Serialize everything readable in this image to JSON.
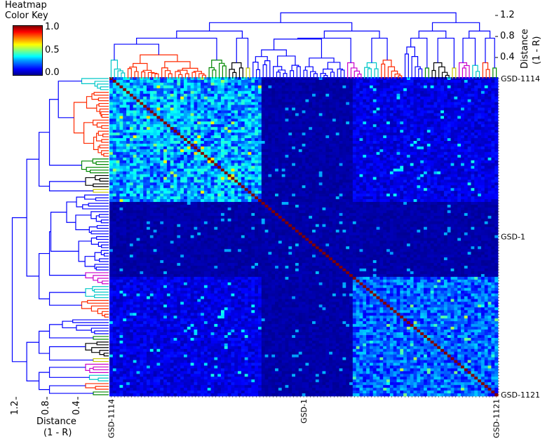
{
  "chart_data": {
    "type": "heatmap",
    "title": "Heatmap Color Key",
    "colorkey": {
      "title_line1": "Heatmap",
      "title_line2": "Color Key",
      "ticks": [
        "1.0",
        "0.5",
        "0.0"
      ],
      "range": [
        0,
        1
      ],
      "colormap": "jet"
    },
    "n_samples": 115,
    "label_first": "GSD-1114",
    "label_last": "GSD-1121",
    "label_prefix": "GSD-1",
    "top_dendrogram": {
      "ylabel_line1": "Distance",
      "ylabel_line2": "(1 - R)",
      "ticks": [
        "1.2",
        "0.8",
        "0.4"
      ],
      "tick_values": [
        1.2,
        0.8,
        0.4
      ]
    },
    "left_dendrogram": {
      "xlabel_line1": "Distance",
      "xlabel_line2": "(1 - R)",
      "ticks": [
        "1.2",
        "0.8",
        "0.4"
      ],
      "tick_values": [
        1.2,
        0.8,
        0.4
      ]
    },
    "clusters": [
      {
        "color": "#00c8c8",
        "size": 5,
        "level": 0.35
      },
      {
        "color": "#ff2a00",
        "size": 24,
        "level": 0.45
      },
      {
        "color": "#008800",
        "size": 6,
        "level": 0.35
      },
      {
        "color": "#000000",
        "size": 5,
        "level": 0.3
      },
      {
        "color": "#c8c800",
        "size": 2,
        "level": 0.2
      },
      {
        "color": "#0000ff",
        "size": 28,
        "level": 0.75
      },
      {
        "color": "#cc00cc",
        "size": 5,
        "level": 0.3
      },
      {
        "color": "#00c8c8",
        "size": 5,
        "level": 0.3
      },
      {
        "color": "#ff2a00",
        "size": 7,
        "level": 0.35
      },
      {
        "color": "#0000ff",
        "size": 6,
        "level": 0.6
      },
      {
        "color": "#008800",
        "size": 2,
        "level": 0.2
      },
      {
        "color": "#000000",
        "size": 6,
        "level": 0.3
      },
      {
        "color": "#c8c800",
        "size": 2,
        "level": 0.2
      },
      {
        "color": "#cc00cc",
        "size": 4,
        "level": 0.3
      },
      {
        "color": "#00c8c8",
        "size": 3,
        "level": 0.25
      },
      {
        "color": "#ff2a00",
        "size": 3,
        "level": 0.3
      },
      {
        "color": "#008800",
        "size": 2,
        "level": 0.2
      }
    ],
    "blocks": [
      {
        "start": 0,
        "end": 45,
        "mean": 0.28
      },
      {
        "start": 45,
        "end": 72,
        "mean": 0.05
      },
      {
        "start": 72,
        "end": 115,
        "mean": 0.22
      }
    ],
    "background_mean": 0.1
  }
}
